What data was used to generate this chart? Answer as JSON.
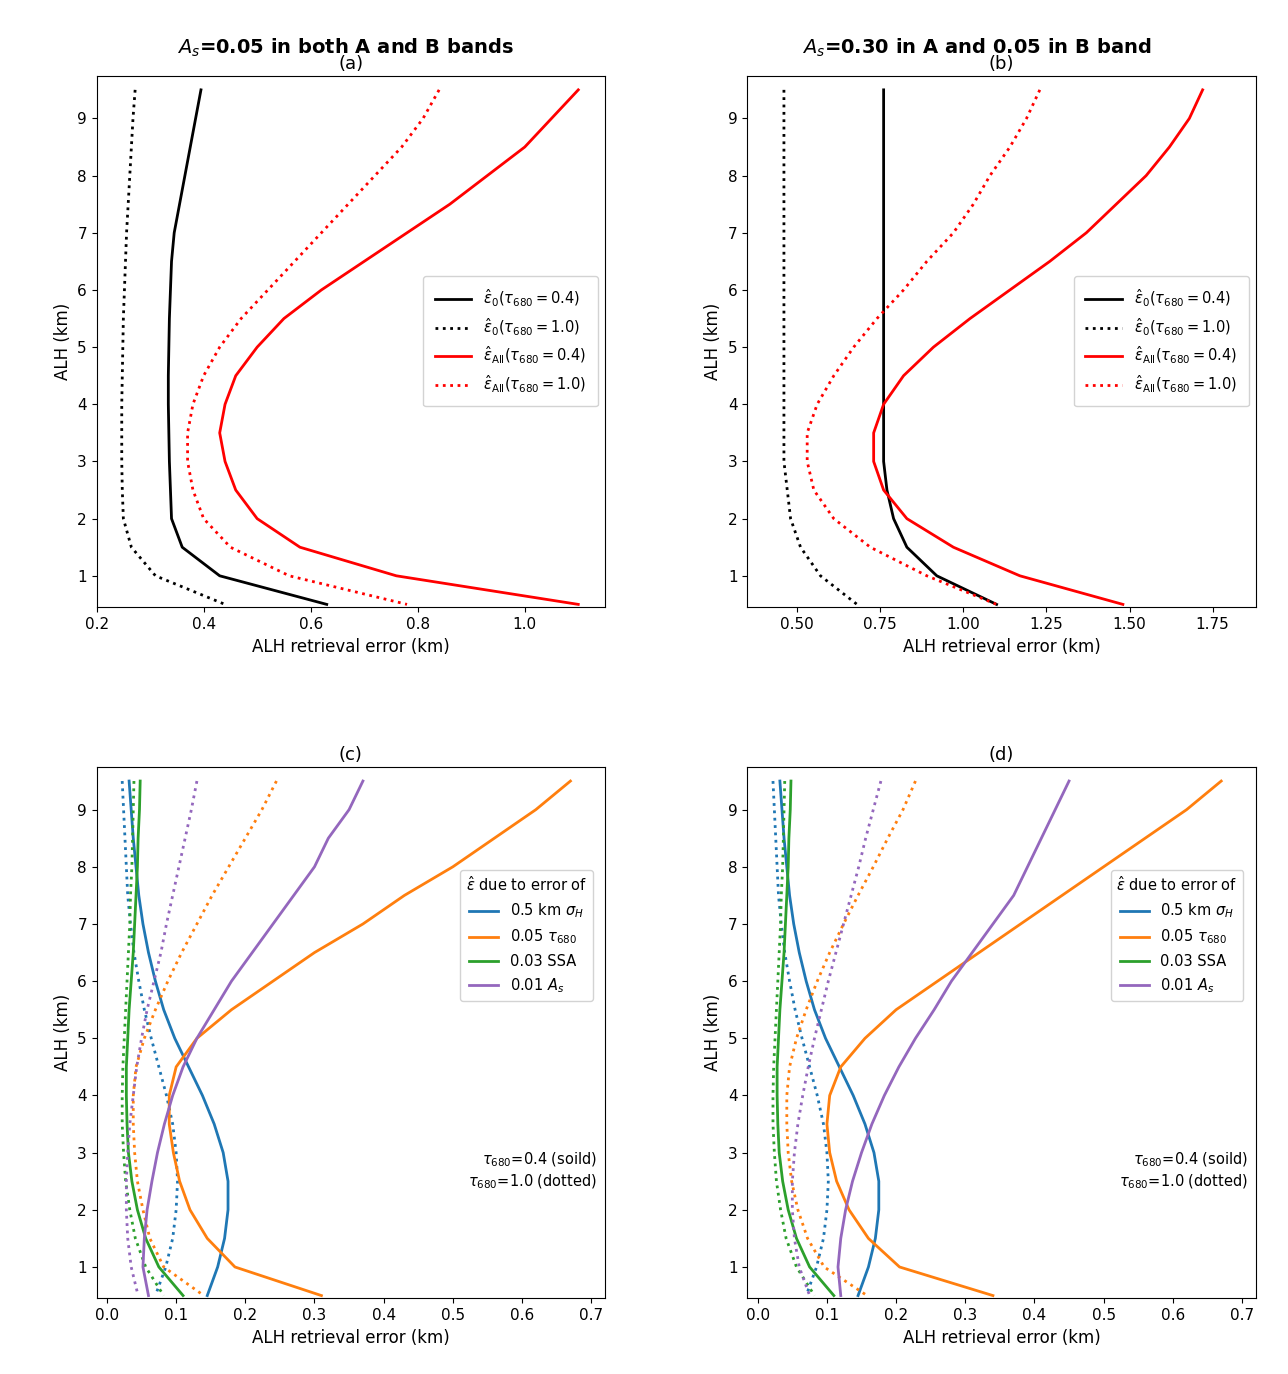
{
  "title_a": "$A_s$=0.05 in both A and B bands",
  "title_b": "$A_s$=0.30 in A and 0.05 in B band",
  "xlabel": "ALH retrieval error (km)",
  "ylabel": "ALH (km)",
  "legend_ab": [
    {
      "label": "$\\hat{\\varepsilon}_0(\\tau_{680}=0.4)$",
      "color": "black",
      "ls": "-"
    },
    {
      "label": "$\\hat{\\varepsilon}_0(\\tau_{680}=1.0)$",
      "color": "black",
      "ls": ":"
    },
    {
      "label": "$\\hat{\\varepsilon}_{\\mathrm{All}}(\\tau_{680}=0.4)$",
      "color": "red",
      "ls": "-"
    },
    {
      "label": "$\\hat{\\varepsilon}_{\\mathrm{All}}(\\tau_{680}=1.0)$",
      "color": "red",
      "ls": ":"
    }
  ],
  "legend_cd_title": "$\\hat{\\varepsilon}$ due to error of",
  "legend_cd": [
    {
      "label": "0.5 km $\\sigma_H$",
      "color": "#1f77b4"
    },
    {
      "label": "0.05 $\\tau_{680}$",
      "color": "#ff7f0e"
    },
    {
      "label": "0.03 SSA",
      "color": "#2ca02c"
    },
    {
      "label": "0.01 $A_s$",
      "color": "#9467bd"
    }
  ],
  "alh": [
    9.5,
    9.0,
    8.5,
    8.0,
    7.5,
    7.0,
    6.5,
    6.0,
    5.5,
    5.0,
    4.5,
    4.0,
    3.5,
    3.0,
    2.5,
    2.0,
    1.5,
    1.0,
    0.5
  ],
  "panel_a": {
    "xlim": [
      0.2,
      1.15
    ],
    "xticks": [
      0.2,
      0.4,
      0.6,
      0.8,
      1.0
    ],
    "ylim": [
      0.45,
      9.75
    ],
    "yticks": [
      1,
      2,
      3,
      4,
      5,
      6,
      7,
      8,
      9
    ],
    "eps0_04_x": [
      0.395,
      0.385,
      0.375,
      0.365,
      0.355,
      0.345,
      0.34,
      0.338,
      0.336,
      0.335,
      0.334,
      0.334,
      0.335,
      0.336,
      0.338,
      0.34,
      0.36,
      0.43,
      0.63
    ],
    "eps0_10_x": [
      0.272,
      0.268,
      0.265,
      0.262,
      0.259,
      0.256,
      0.254,
      0.252,
      0.25,
      0.249,
      0.248,
      0.247,
      0.247,
      0.247,
      0.248,
      0.25,
      0.265,
      0.31,
      0.44
    ],
    "epsAll_04_x": [
      1.1,
      1.05,
      1.0,
      0.93,
      0.86,
      0.78,
      0.7,
      0.62,
      0.55,
      0.5,
      0.46,
      0.44,
      0.43,
      0.44,
      0.46,
      0.5,
      0.58,
      0.76,
      1.1
    ],
    "epsAll_10_x": [
      0.84,
      0.81,
      0.77,
      0.72,
      0.67,
      0.62,
      0.57,
      0.52,
      0.47,
      0.43,
      0.4,
      0.38,
      0.37,
      0.37,
      0.38,
      0.4,
      0.45,
      0.56,
      0.78
    ]
  },
  "panel_b": {
    "xlim": [
      0.35,
      1.88
    ],
    "xticks": [
      0.5,
      0.75,
      1.0,
      1.25,
      1.5,
      1.75
    ],
    "ylim": [
      0.45,
      9.75
    ],
    "yticks": [
      1,
      2,
      3,
      4,
      5,
      6,
      7,
      8,
      9
    ],
    "eps0_04_x": [
      0.76,
      0.76,
      0.76,
      0.76,
      0.76,
      0.76,
      0.76,
      0.76,
      0.76,
      0.76,
      0.76,
      0.76,
      0.76,
      0.76,
      0.77,
      0.79,
      0.83,
      0.92,
      1.1
    ],
    "eps0_10_x": [
      0.46,
      0.46,
      0.46,
      0.46,
      0.46,
      0.46,
      0.46,
      0.46,
      0.46,
      0.46,
      0.46,
      0.46,
      0.46,
      0.46,
      0.47,
      0.48,
      0.51,
      0.57,
      0.68
    ],
    "epsAll_04_x": [
      1.72,
      1.68,
      1.62,
      1.55,
      1.46,
      1.37,
      1.26,
      1.14,
      1.02,
      0.91,
      0.82,
      0.76,
      0.73,
      0.73,
      0.76,
      0.83,
      0.97,
      1.17,
      1.48
    ],
    "epsAll_10_x": [
      1.23,
      1.19,
      1.14,
      1.08,
      1.03,
      0.97,
      0.89,
      0.82,
      0.74,
      0.67,
      0.61,
      0.56,
      0.53,
      0.53,
      0.55,
      0.61,
      0.72,
      0.89,
      1.1
    ]
  },
  "panel_c": {
    "xlim": [
      -0.015,
      0.72
    ],
    "xticks": [
      0.0,
      0.1,
      0.2,
      0.3,
      0.4,
      0.5,
      0.6,
      0.7
    ],
    "ylim": [
      0.45,
      9.75
    ],
    "yticks": [
      1,
      2,
      3,
      4,
      5,
      6,
      7,
      8,
      9
    ],
    "sigma_04_x": [
      0.032,
      0.035,
      0.038,
      0.042,
      0.046,
      0.052,
      0.06,
      0.07,
      0.082,
      0.098,
      0.118,
      0.138,
      0.155,
      0.168,
      0.175,
      0.175,
      0.17,
      0.16,
      0.145
    ],
    "sigma_10_x": [
      0.022,
      0.024,
      0.026,
      0.028,
      0.03,
      0.034,
      0.039,
      0.046,
      0.054,
      0.064,
      0.075,
      0.086,
      0.095,
      0.1,
      0.102,
      0.1,
      0.095,
      0.085,
      0.07
    ],
    "tau_04_x": [
      0.67,
      0.62,
      0.56,
      0.5,
      0.43,
      0.37,
      0.3,
      0.24,
      0.18,
      0.13,
      0.1,
      0.09,
      0.09,
      0.096,
      0.105,
      0.12,
      0.145,
      0.185,
      0.31
    ],
    "tau_10_x": [
      0.245,
      0.224,
      0.2,
      0.176,
      0.152,
      0.13,
      0.108,
      0.088,
      0.07,
      0.054,
      0.042,
      0.038,
      0.038,
      0.04,
      0.044,
      0.052,
      0.062,
      0.082,
      0.14
    ],
    "ssa_04_x": [
      0.048,
      0.047,
      0.045,
      0.044,
      0.042,
      0.04,
      0.038,
      0.035,
      0.032,
      0.03,
      0.028,
      0.028,
      0.029,
      0.031,
      0.036,
      0.044,
      0.056,
      0.075,
      0.11
    ],
    "ssa_10_x": [
      0.039,
      0.038,
      0.037,
      0.036,
      0.034,
      0.033,
      0.031,
      0.029,
      0.027,
      0.025,
      0.023,
      0.022,
      0.022,
      0.024,
      0.027,
      0.033,
      0.041,
      0.056,
      0.082
    ],
    "as_04_x": [
      0.37,
      0.35,
      0.32,
      0.3,
      0.27,
      0.24,
      0.21,
      0.18,
      0.155,
      0.13,
      0.11,
      0.095,
      0.083,
      0.073,
      0.065,
      0.058,
      0.054,
      0.052,
      0.06
    ],
    "as_10_x": [
      0.13,
      0.122,
      0.113,
      0.104,
      0.095,
      0.086,
      0.078,
      0.068,
      0.058,
      0.05,
      0.043,
      0.038,
      0.033,
      0.03,
      0.028,
      0.028,
      0.03,
      0.035,
      0.045
    ]
  },
  "panel_d": {
    "xlim": [
      -0.015,
      0.72
    ],
    "xticks": [
      0.0,
      0.1,
      0.2,
      0.3,
      0.4,
      0.5,
      0.6,
      0.7
    ],
    "ylim": [
      0.45,
      9.75
    ],
    "yticks": [
      1,
      2,
      3,
      4,
      5,
      6,
      7,
      8,
      9
    ],
    "sigma_04_x": [
      0.032,
      0.035,
      0.038,
      0.042,
      0.046,
      0.052,
      0.06,
      0.07,
      0.082,
      0.098,
      0.118,
      0.138,
      0.155,
      0.168,
      0.175,
      0.175,
      0.17,
      0.16,
      0.145
    ],
    "sigma_10_x": [
      0.022,
      0.024,
      0.026,
      0.028,
      0.03,
      0.034,
      0.039,
      0.046,
      0.054,
      0.064,
      0.075,
      0.086,
      0.095,
      0.1,
      0.102,
      0.1,
      0.095,
      0.085,
      0.07
    ],
    "tau_04_x": [
      0.67,
      0.62,
      0.56,
      0.5,
      0.44,
      0.38,
      0.32,
      0.26,
      0.2,
      0.155,
      0.12,
      0.104,
      0.1,
      0.104,
      0.114,
      0.132,
      0.16,
      0.205,
      0.34
    ],
    "tau_10_x": [
      0.228,
      0.21,
      0.188,
      0.167,
      0.145,
      0.124,
      0.104,
      0.086,
      0.07,
      0.056,
      0.046,
      0.042,
      0.042,
      0.044,
      0.049,
      0.058,
      0.072,
      0.096,
      0.158
    ],
    "ssa_04_x": [
      0.048,
      0.047,
      0.045,
      0.044,
      0.042,
      0.04,
      0.038,
      0.035,
      0.032,
      0.03,
      0.028,
      0.028,
      0.029,
      0.031,
      0.036,
      0.044,
      0.056,
      0.075,
      0.11
    ],
    "ssa_10_x": [
      0.039,
      0.038,
      0.037,
      0.036,
      0.034,
      0.033,
      0.031,
      0.029,
      0.027,
      0.025,
      0.023,
      0.022,
      0.022,
      0.024,
      0.027,
      0.033,
      0.041,
      0.056,
      0.082
    ],
    "as_04_x": [
      0.45,
      0.43,
      0.41,
      0.39,
      0.37,
      0.34,
      0.31,
      0.28,
      0.255,
      0.228,
      0.204,
      0.183,
      0.165,
      0.15,
      0.137,
      0.127,
      0.12,
      0.116,
      0.12
    ],
    "as_10_x": [
      0.178,
      0.167,
      0.156,
      0.146,
      0.135,
      0.124,
      0.113,
      0.102,
      0.092,
      0.082,
      0.073,
      0.065,
      0.058,
      0.053,
      0.05,
      0.05,
      0.053,
      0.06,
      0.075
    ]
  }
}
